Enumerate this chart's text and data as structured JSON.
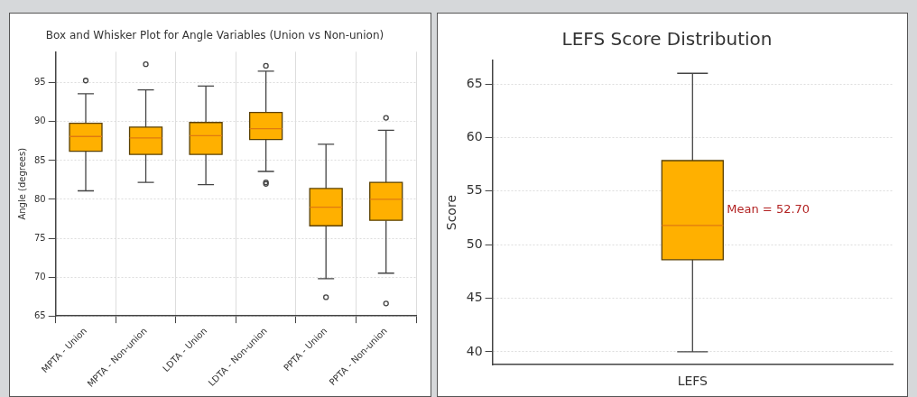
{
  "chart_data": [
    {
      "type": "box",
      "title": "Box and Whisker Plot for Angle Variables (Union vs Non-union)",
      "ylabel": "Angle (degrees)",
      "categories": [
        "MPTA - Union",
        "MPTA - Non-union",
        "LDTA - Union",
        "LDTA - Non-union",
        "PPTA - Union",
        "PPTA - Non-union"
      ],
      "color": "#ffb000",
      "boxes": [
        {
          "low": 81.1,
          "q1": 86.2,
          "median": 88.1,
          "q3": 89.8,
          "high": 93.6,
          "outliers": [
            95.3
          ]
        },
        {
          "low": 82.2,
          "q1": 85.8,
          "median": 87.9,
          "q3": 89.3,
          "high": 94.1,
          "outliers": [
            97.4
          ]
        },
        {
          "low": 81.9,
          "q1": 85.8,
          "median": 88.2,
          "q3": 89.9,
          "high": 94.6
        },
        {
          "low": 83.6,
          "q1": 87.7,
          "median": 89.1,
          "q3": 91.2,
          "high": 96.5,
          "outliers": [
            97.2,
            82.2,
            82.0
          ]
        },
        {
          "low": 69.8,
          "q1": 76.6,
          "median": 79.0,
          "q3": 81.4,
          "high": 87.1,
          "outliers": [
            67.4
          ]
        },
        {
          "low": 70.5,
          "q1": 77.3,
          "median": 80.0,
          "q3": 82.2,
          "high": 88.9,
          "outliers": [
            90.5,
            66.6
          ]
        }
      ],
      "ylim": [
        65,
        99
      ],
      "yticks": [
        65,
        70,
        75,
        80,
        85,
        90,
        95
      ],
      "grid": true
    },
    {
      "type": "box",
      "title": "LEFS Score Distribution",
      "ylabel": "Score",
      "categories": [
        "LEFS"
      ],
      "color": "#ffb000",
      "boxes": [
        {
          "low": 40.0,
          "q1": 48.6,
          "median": 51.8,
          "q3": 57.85,
          "high": 66.0
        }
      ],
      "ylim": [
        38.8,
        67.2
      ],
      "yticks": [
        40,
        45,
        50,
        55,
        60,
        65
      ],
      "grid": "y",
      "annotations": [
        "Mean = 52.70"
      ]
    }
  ]
}
